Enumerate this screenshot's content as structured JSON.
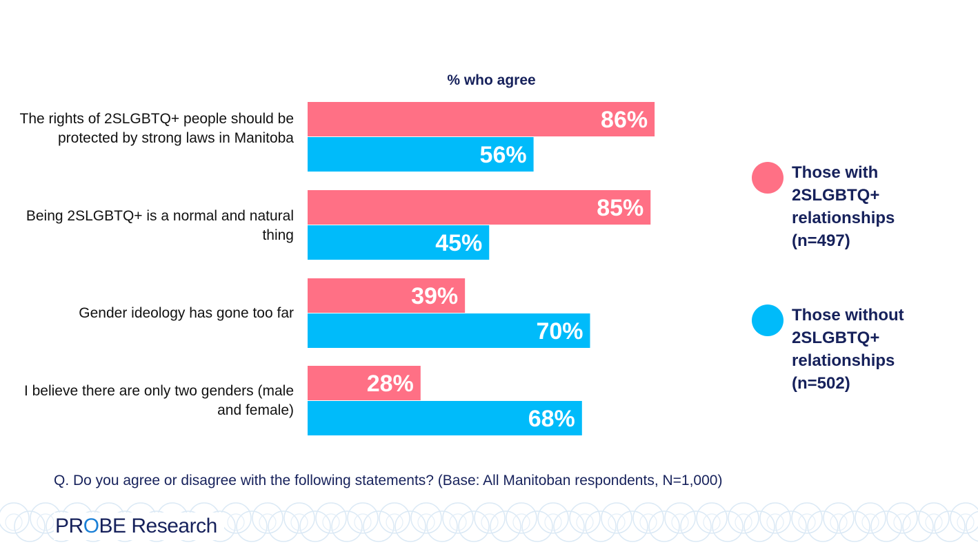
{
  "colors": {
    "with": "#ff7085",
    "without": "#00bbfa",
    "navy": "#16215b",
    "label_text": "#ffffff"
  },
  "chart_data": {
    "type": "bar",
    "orientation": "horizontal",
    "title": "% who agree",
    "categories": [
      "The rights of 2SLGBTQ+ people should be protected by strong laws in Manitoba",
      "Being 2SLGBTQ+ is a normal and natural thing",
      "Gender ideology has gone too far",
      "I believe there are only two genders (male and female)"
    ],
    "series": [
      {
        "name": "Those with 2SLGBTQ+ relationships (n=497)",
        "values": [
          86,
          85,
          39,
          28
        ],
        "labels": [
          "86%",
          "85%",
          "39%",
          "28%"
        ]
      },
      {
        "name": "Those without 2SLGBTQ+ relationships (n=502)",
        "values": [
          56,
          45,
          70,
          68
        ],
        "labels": [
          "56%",
          "45%",
          "70%",
          "68%"
        ]
      }
    ],
    "xlim": [
      0,
      100
    ],
    "grid": false,
    "legend_position": "right"
  },
  "footnote": "Q. Do you agree or disagree with the following statements? (Base: All Manitoban respondents, N=1,000)",
  "logo": {
    "part1": "PR",
    "part2": "O",
    "part3": "BE Research"
  }
}
